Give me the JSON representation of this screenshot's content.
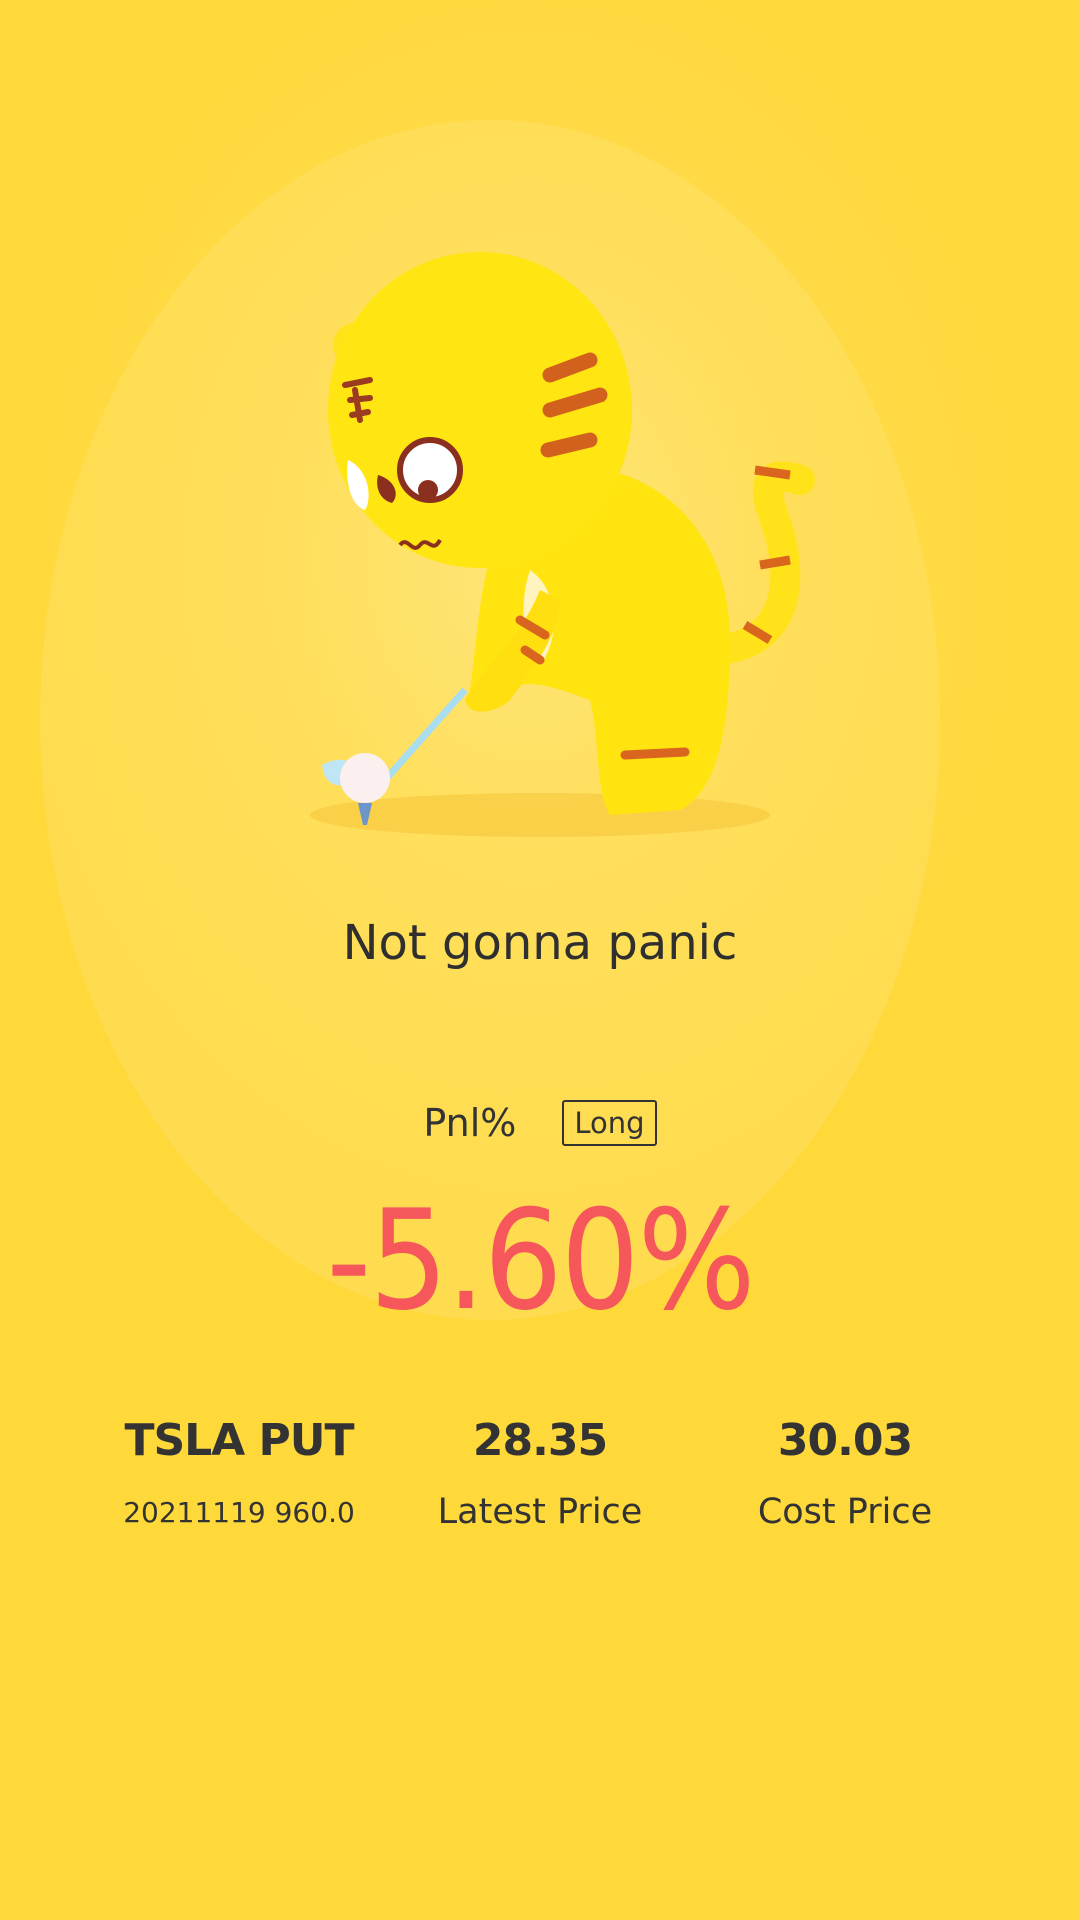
{
  "mood_title": "Not gonna panic",
  "pnl": {
    "label": "Pnl%",
    "direction_badge": "Long",
    "value": "-5.60%",
    "value_color": "#F5575A"
  },
  "position": {
    "symbol": "TSLA PUT",
    "contract": "20211119 960.0",
    "latest_price": {
      "value": "28.35",
      "label": "Latest Price"
    },
    "cost_price": {
      "value": "30.03",
      "label": "Cost Price"
    }
  },
  "colors": {
    "background": "#FFD83A",
    "text": "#333333"
  },
  "illustration": "tiger-mascot-golfing"
}
